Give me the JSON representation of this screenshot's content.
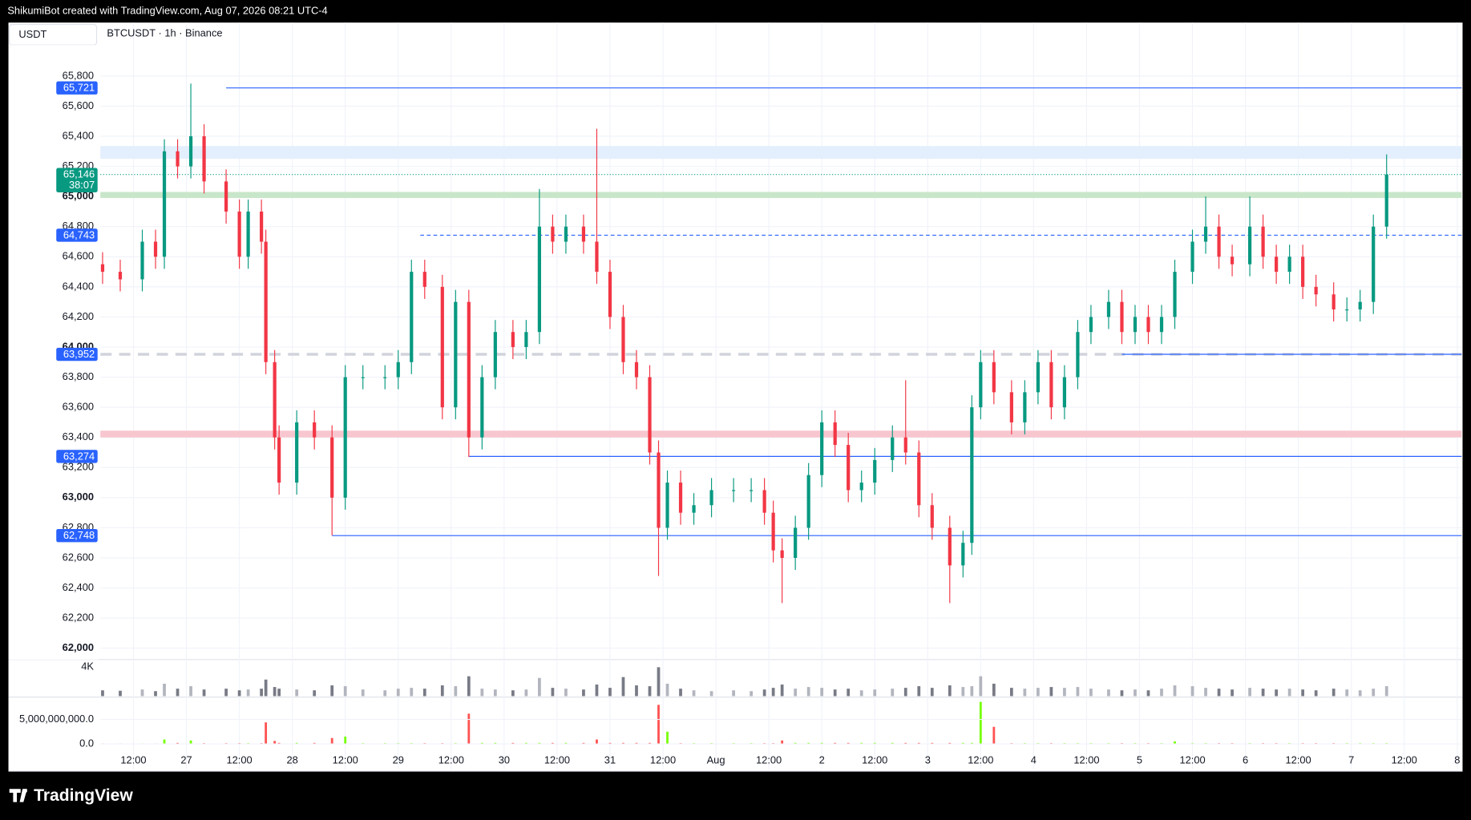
{
  "header": {
    "credit": "ShikumiBot created with TradingView.com, Aug 07, 2026 08:21 UTC-4"
  },
  "footer": {
    "brand": "TradingView"
  },
  "chart_data": {
    "type": "candlestick",
    "title": "BTCUSDT · 1h · Binance",
    "currency": "USDT",
    "up_color": "#089981",
    "down_color": "#f23645",
    "grid": true,
    "xlim": [
      4.5,
      313
    ],
    "xticks": [
      {
        "value": 12,
        "label": "12:00"
      },
      {
        "value": 24,
        "label": "27"
      },
      {
        "value": 36,
        "label": "12:00"
      },
      {
        "value": 48,
        "label": "28"
      },
      {
        "value": 60,
        "label": "12:00"
      },
      {
        "value": 72,
        "label": "29"
      },
      {
        "value": 84,
        "label": "12:00"
      },
      {
        "value": 96,
        "label": "30"
      },
      {
        "value": 108,
        "label": "12:00"
      },
      {
        "value": 120,
        "label": "31"
      },
      {
        "value": 132,
        "label": "12:00"
      },
      {
        "value": 144,
        "label": "Aug"
      },
      {
        "value": 156,
        "label": "12:00"
      },
      {
        "value": 168,
        "label": "2"
      },
      {
        "value": 180,
        "label": "12:00"
      },
      {
        "value": 192,
        "label": "3"
      },
      {
        "value": 204,
        "label": "12:00"
      },
      {
        "value": 216,
        "label": "4"
      },
      {
        "value": 228,
        "label": "12:00"
      },
      {
        "value": 240,
        "label": "5"
      },
      {
        "value": 252,
        "label": "12:00"
      },
      {
        "value": 264,
        "label": "6"
      },
      {
        "value": 276,
        "label": "12:00"
      },
      {
        "value": 288,
        "label": "7"
      },
      {
        "value": 300,
        "label": "12:00"
      },
      {
        "value": 312,
        "label": "8"
      }
    ],
    "ylim": [
      61925,
      66155
    ],
    "yticks": [
      {
        "value": 62000,
        "label": "62,000"
      },
      {
        "value": 62200,
        "label": "62,200"
      },
      {
        "value": 62400,
        "label": "62,400"
      },
      {
        "value": 62600,
        "label": "62,600"
      },
      {
        "value": 62800,
        "label": "62,800"
      },
      {
        "value": 63000,
        "label": "63,000"
      },
      {
        "value": 63200,
        "label": "63,200"
      },
      {
        "value": 63400,
        "label": "63,400"
      },
      {
        "value": 63600,
        "label": "63,600"
      },
      {
        "value": 63800,
        "label": "63,800"
      },
      {
        "value": 64000,
        "label": "64,000"
      },
      {
        "value": 64200,
        "label": "64,200"
      },
      {
        "value": 64400,
        "label": "64,400"
      },
      {
        "value": 64600,
        "label": "64,600"
      },
      {
        "value": 64800,
        "label": "64,800"
      },
      {
        "value": 65000,
        "label": "65,000"
      },
      {
        "value": 65200,
        "label": "65,200"
      },
      {
        "value": 65400,
        "label": "65,400"
      },
      {
        "value": 65600,
        "label": "65,600"
      },
      {
        "value": 65800,
        "label": "65,800"
      }
    ],
    "bands": [
      {
        "from": 63400,
        "to": 63445,
        "color": "#f8c6cf"
      },
      {
        "from": 64990,
        "to": 65030,
        "color": "#c8e6c9"
      },
      {
        "from": 65250,
        "to": 65335,
        "color": "#e3effd"
      }
    ],
    "levels": [
      {
        "value": 65721,
        "label": "65,721",
        "color": "#2962ff",
        "start": 33,
        "dash": false
      },
      {
        "value": 64743,
        "label": "64,743",
        "color": "#2962ff",
        "start": 77,
        "dash": true
      },
      {
        "value": 63952,
        "color": "#d1d4dc",
        "start": 4.5,
        "dash": true
      },
      {
        "value": 63952,
        "label": "63,952",
        "color": "#2962ff",
        "start": 236,
        "dash": false
      },
      {
        "value": 63274,
        "label": "63,274",
        "color": "#2962ff",
        "start": 88,
        "dash": false
      },
      {
        "value": 62748,
        "label": "62,748",
        "color": "#2962ff",
        "start": 57,
        "dash": false
      }
    ],
    "last_price": {
      "value": 65146,
      "label": "65,146",
      "countdown": "38:07",
      "color": "#089981"
    },
    "x": [
      5,
      9,
      14,
      17,
      19,
      22,
      25,
      28,
      33,
      36,
      38,
      41,
      42,
      44,
      45,
      49,
      53,
      57,
      60,
      64,
      69,
      72,
      75,
      78,
      82,
      85,
      88,
      91,
      94,
      98,
      101,
      104,
      107,
      110,
      114,
      117,
      120,
      123,
      126,
      129,
      131,
      133,
      136,
      139,
      143,
      148,
      152,
      155,
      157,
      159,
      162,
      165,
      168,
      171,
      174,
      177,
      180,
      184,
      187,
      190,
      193,
      197,
      200,
      202,
      204,
      207,
      211,
      214,
      217,
      220,
      223,
      226,
      229,
      233,
      236,
      239,
      242,
      245,
      248,
      252,
      255,
      258,
      261,
      265,
      268,
      271,
      274,
      277,
      280,
      284,
      287,
      290,
      293,
      296
    ],
    "open": [
      64550,
      64500,
      64450,
      64700,
      64600,
      65300,
      65200,
      65400,
      65100,
      64900,
      64600,
      64900,
      64700,
      63900,
      63400,
      63100,
      63500,
      63400,
      63000,
      63800,
      63800,
      63800,
      63900,
      64500,
      64400,
      63600,
      64300,
      63400,
      63800,
      64100,
      64000,
      64100,
      64800,
      64700,
      64800,
      64700,
      64500,
      64200,
      63900,
      63800,
      63300,
      62800,
      63100,
      62900,
      62950,
      63050,
      63050,
      63050,
      62900,
      62650,
      62600,
      62800,
      63150,
      63500,
      63350,
      63050,
      63100,
      63250,
      63400,
      63300,
      62950,
      62800,
      62550,
      62700,
      63600,
      63900,
      63700,
      63500,
      63700,
      63900,
      63600,
      63800,
      64100,
      64200,
      64300,
      64100,
      64200,
      64100,
      64200,
      64500,
      64700,
      64800,
      64600,
      64550,
      64800,
      64600,
      64500,
      64600,
      64400,
      64350,
      64250,
      64250,
      64300,
      64800
    ],
    "high": [
      64630,
      64580,
      64780,
      64780,
      65380,
      65380,
      65750,
      65480,
      65180,
      64980,
      64980,
      64980,
      64780,
      63980,
      63480,
      63580,
      63580,
      63480,
      63880,
      63880,
      63880,
      63980,
      64580,
      64580,
      64480,
      64380,
      64380,
      63880,
      64180,
      64180,
      64180,
      65050,
      64880,
      64880,
      64880,
      65450,
      64580,
      64280,
      63980,
      63880,
      63380,
      63180,
      63180,
      63030,
      63130,
      63130,
      63130,
      63130,
      62980,
      62730,
      62880,
      63230,
      63580,
      63580,
      63430,
      63180,
      63330,
      63480,
      63780,
      63380,
      63030,
      62880,
      62780,
      63680,
      63980,
      63980,
      63780,
      63780,
      63980,
      63980,
      63880,
      64180,
      64280,
      64380,
      64380,
      64280,
      64280,
      64280,
      64580,
      64780,
      65000,
      64880,
      64680,
      65000,
      64880,
      64680,
      64680,
      64680,
      64480,
      64430,
      64330,
      64380,
      64880,
      65280
    ],
    "low": [
      64420,
      64370,
      64370,
      64520,
      64520,
      65120,
      65120,
      65020,
      64820,
      64520,
      64520,
      64620,
      63820,
      63320,
      63020,
      63020,
      63320,
      62750,
      62920,
      63720,
      63720,
      63720,
      63820,
      64320,
      63520,
      63520,
      63270,
      63320,
      63720,
      63920,
      63920,
      64020,
      64620,
      64620,
      64620,
      64420,
      64120,
      63820,
      63720,
      63220,
      62480,
      62720,
      62820,
      62820,
      62870,
      62970,
      62970,
      62820,
      62570,
      62300,
      62520,
      62720,
      63070,
      63270,
      62970,
      62970,
      63020,
      63170,
      63220,
      62870,
      62720,
      62300,
      62470,
      62620,
      63520,
      63620,
      63420,
      63420,
      63620,
      63520,
      63520,
      63720,
      64020,
      64120,
      64020,
      64020,
      64020,
      64020,
      64120,
      64420,
      64620,
      64520,
      64470,
      64470,
      64520,
      64420,
      64420,
      64320,
      64270,
      64170,
      64170,
      64170,
      64220,
      64720
    ],
    "close": [
      64500,
      64450,
      64700,
      64600,
      65300,
      65200,
      65400,
      65100,
      64900,
      64600,
      64900,
      64700,
      63900,
      63400,
      63100,
      63500,
      63400,
      63000,
      63800,
      63800,
      63800,
      63900,
      64500,
      64400,
      63600,
      64300,
      63400,
      63800,
      64100,
      64000,
      64100,
      64800,
      64700,
      64800,
      64700,
      64500,
      64200,
      63900,
      63800,
      63300,
      62800,
      63100,
      62900,
      62950,
      63050,
      63050,
      63050,
      62900,
      62650,
      62600,
      62800,
      63150,
      63500,
      63350,
      63050,
      63100,
      63250,
      63400,
      63300,
      62950,
      62800,
      62550,
      62700,
      63600,
      63900,
      63700,
      63500,
      63700,
      63900,
      63600,
      63800,
      64100,
      64200,
      64300,
      64100,
      64200,
      64100,
      64200,
      64500,
      64700,
      64800,
      64600,
      64550,
      64800,
      64600,
      64500,
      64600,
      64400,
      64350,
      64250,
      64250,
      64300,
      64800,
      65146
    ],
    "volume_lim": [
      0,
      4200
    ],
    "volume_ticks": [
      {
        "value": 4000,
        "label": "4K"
      }
    ],
    "volume": [
      700,
      650,
      800,
      600,
      1500,
      900,
      1200,
      800,
      900,
      700,
      800,
      900,
      2000,
      1100,
      900,
      800,
      700,
      1300,
      1200,
      800,
      700,
      900,
      1000,
      900,
      1300,
      1200,
      2400,
      900,
      800,
      700,
      800,
      2200,
      1000,
      900,
      800,
      1400,
      1000,
      2300,
      1300,
      1200,
      3500,
      1500,
      900,
      700,
      600,
      700,
      600,
      800,
      1000,
      1400,
      900,
      1100,
      1000,
      800,
      900,
      700,
      800,
      900,
      1000,
      1200,
      1000,
      1300,
      1100,
      1200,
      2400,
      1500,
      1000,
      900,
      1000,
      1100,
      1000,
      1100,
      900,
      800,
      700,
      800,
      700,
      900,
      1300,
      1200,
      1000,
      900,
      800,
      1000,
      900,
      800,
      900,
      800,
      700,
      900,
      800,
      700,
      900,
      1200
    ],
    "flow_lim": [
      -5200000000,
      9400000000
    ],
    "flow_ticks": [
      {
        "value": 0,
        "label": "0.0"
      },
      {
        "value": 5000000000,
        "label": "5,000,000,000.0"
      }
    ],
    "flow": [
      100000000,
      100000000,
      100000000,
      100000000,
      900000000,
      200000000,
      700000000,
      150000000,
      150000000,
      150000000,
      150000000,
      150000000,
      4400000000,
      600000000,
      200000000,
      200000000,
      200000000,
      1200000000,
      1500000000,
      150000000,
      150000000,
      150000000,
      150000000,
      150000000,
      150000000,
      150000000,
      6200000000,
      200000000,
      200000000,
      200000000,
      200000000,
      200000000,
      200000000,
      200000000,
      200000000,
      900000000,
      200000000,
      200000000,
      200000000,
      200000000,
      8000000000,
      2500000000,
      150000000,
      150000000,
      150000000,
      150000000,
      150000000,
      150000000,
      150000000,
      700000000,
      200000000,
      200000000,
      200000000,
      200000000,
      200000000,
      200000000,
      200000000,
      200000000,
      200000000,
      200000000,
      200000000,
      200000000,
      200000000,
      200000000,
      8600000000,
      3500000000,
      150000000,
      150000000,
      150000000,
      150000000,
      150000000,
      150000000,
      150000000,
      150000000,
      150000000,
      150000000,
      150000000,
      150000000,
      500000000,
      150000000,
      150000000,
      150000000,
      150000000,
      150000000,
      150000000,
      150000000,
      150000000,
      150000000,
      150000000,
      150000000,
      150000000,
      150000000,
      150000000,
      150000000
    ]
  }
}
